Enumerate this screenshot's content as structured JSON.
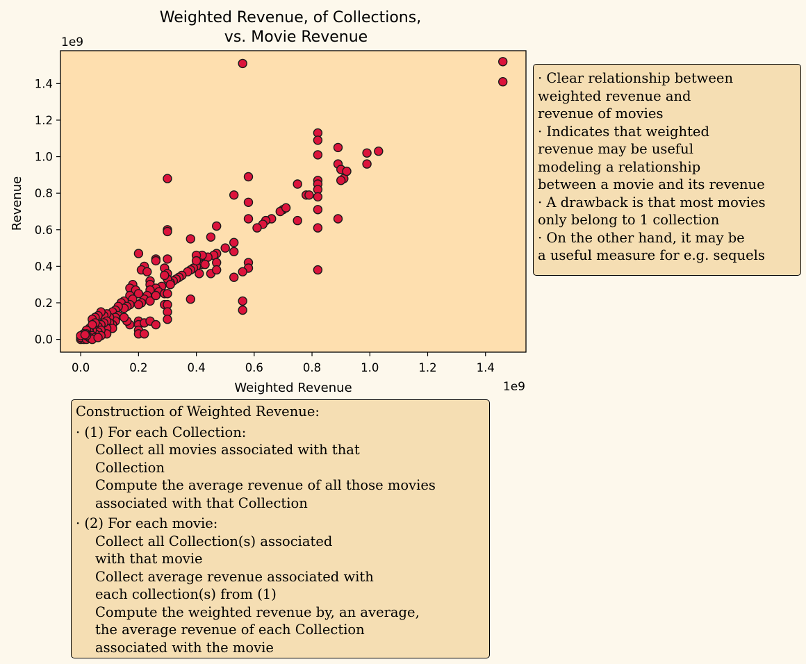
{
  "chart_data": {
    "type": "scatter",
    "title": "Weighted Revenue, of Collections,\nvs. Movie Revenue",
    "xlabel": "Weighted Revenue",
    "ylabel": "Revenue",
    "x_scale_label": "1e9",
    "y_scale_label": "1e9",
    "xlim": [
      -0.07,
      1.54
    ],
    "ylim": [
      -0.07,
      1.58
    ],
    "x_ticks": [
      "0.0",
      "0.2",
      "0.4",
      "0.6",
      "0.8",
      "1.0",
      "1.2",
      "1.4"
    ],
    "y_ticks": [
      "0.0",
      "0.2",
      "0.4",
      "0.6",
      "0.8",
      "1.0",
      "1.2",
      "1.4"
    ],
    "x_tick_values": [
      0.0,
      0.2,
      0.4,
      0.6,
      0.8,
      1.0,
      1.2,
      1.4
    ],
    "y_tick_values": [
      0.0,
      0.2,
      0.4,
      0.6,
      0.8,
      1.0,
      1.2,
      1.4
    ],
    "plot_background": "#fedfaf",
    "marker_color": "#dc143c",
    "marker_edge": "#1a1a1a",
    "grid": false,
    "points": [
      [
        1.46,
        1.52
      ],
      [
        1.46,
        1.41
      ],
      [
        0.56,
        1.51
      ],
      [
        0.82,
        1.13
      ],
      [
        0.82,
        1.09
      ],
      [
        0.82,
        1.01
      ],
      [
        0.89,
        1.05
      ],
      [
        0.89,
        0.96
      ],
      [
        0.9,
        0.93
      ],
      [
        0.91,
        0.88
      ],
      [
        0.92,
        0.92
      ],
      [
        0.9,
        0.87
      ],
      [
        0.99,
        1.02
      ],
      [
        1.03,
        1.03
      ],
      [
        0.99,
        0.96
      ],
      [
        0.3,
        0.88
      ],
      [
        0.58,
        0.89
      ],
      [
        0.53,
        0.79
      ],
      [
        0.58,
        0.75
      ],
      [
        0.75,
        0.85
      ],
      [
        0.78,
        0.79
      ],
      [
        0.79,
        0.79
      ],
      [
        0.82,
        0.87
      ],
      [
        0.82,
        0.85
      ],
      [
        0.82,
        0.82
      ],
      [
        0.82,
        0.78
      ],
      [
        0.82,
        0.71
      ],
      [
        0.82,
        0.61
      ],
      [
        0.89,
        0.66
      ],
      [
        0.82,
        0.38
      ],
      [
        0.7,
        0.71
      ],
      [
        0.69,
        0.7
      ],
      [
        0.71,
        0.72
      ],
      [
        0.75,
        0.65
      ],
      [
        0.66,
        0.66
      ],
      [
        0.64,
        0.65
      ],
      [
        0.63,
        0.63
      ],
      [
        0.61,
        0.61
      ],
      [
        0.58,
        0.66
      ],
      [
        0.47,
        0.62
      ],
      [
        0.3,
        0.6
      ],
      [
        0.3,
        0.59
      ],
      [
        0.38,
        0.55
      ],
      [
        0.45,
        0.56
      ],
      [
        0.5,
        0.5
      ],
      [
        0.53,
        0.53
      ],
      [
        0.53,
        0.48
      ],
      [
        0.58,
        0.42
      ],
      [
        0.58,
        0.39
      ],
      [
        0.56,
        0.37
      ],
      [
        0.53,
        0.34
      ],
      [
        0.56,
        0.21
      ],
      [
        0.56,
        0.16
      ],
      [
        0.47,
        0.47
      ],
      [
        0.46,
        0.46
      ],
      [
        0.44,
        0.45
      ],
      [
        0.42,
        0.46
      ],
      [
        0.4,
        0.46
      ],
      [
        0.41,
        0.42
      ],
      [
        0.42,
        0.41
      ],
      [
        0.43,
        0.41
      ],
      [
        0.4,
        0.4
      ],
      [
        0.39,
        0.39
      ],
      [
        0.38,
        0.38
      ],
      [
        0.37,
        0.37
      ],
      [
        0.35,
        0.35
      ],
      [
        0.34,
        0.34
      ],
      [
        0.33,
        0.33
      ],
      [
        0.32,
        0.32
      ],
      [
        0.31,
        0.31
      ],
      [
        0.45,
        0.36
      ],
      [
        0.41,
        0.36
      ],
      [
        0.47,
        0.42
      ],
      [
        0.47,
        0.38
      ],
      [
        0.4,
        0.43
      ],
      [
        0.2,
        0.47
      ],
      [
        0.26,
        0.44
      ],
      [
        0.26,
        0.43
      ],
      [
        0.3,
        0.44
      ],
      [
        0.22,
        0.4
      ],
      [
        0.21,
        0.38
      ],
      [
        0.23,
        0.37
      ],
      [
        0.29,
        0.39
      ],
      [
        0.3,
        0.36
      ],
      [
        0.24,
        0.32
      ],
      [
        0.24,
        0.3
      ],
      [
        0.3,
        0.33
      ],
      [
        0.29,
        0.35
      ],
      [
        0.31,
        0.3
      ],
      [
        0.28,
        0.29
      ],
      [
        0.26,
        0.28
      ],
      [
        0.27,
        0.26
      ],
      [
        0.29,
        0.25
      ],
      [
        0.3,
        0.25
      ],
      [
        0.24,
        0.27
      ],
      [
        0.23,
        0.24
      ],
      [
        0.22,
        0.22
      ],
      [
        0.24,
        0.21
      ],
      [
        0.21,
        0.2
      ],
      [
        0.2,
        0.19
      ],
      [
        0.26,
        0.24
      ],
      [
        0.29,
        0.19
      ],
      [
        0.3,
        0.19
      ],
      [
        0.3,
        0.15
      ],
      [
        0.3,
        0.11
      ],
      [
        0.38,
        0.22
      ],
      [
        0.18,
        0.3
      ],
      [
        0.17,
        0.28
      ],
      [
        0.19,
        0.27
      ],
      [
        0.2,
        0.25
      ],
      [
        0.17,
        0.24
      ],
      [
        0.18,
        0.22
      ],
      [
        0.17,
        0.19
      ],
      [
        0.15,
        0.21
      ],
      [
        0.14,
        0.2
      ],
      [
        0.16,
        0.18
      ],
      [
        0.15,
        0.17
      ],
      [
        0.13,
        0.18
      ],
      [
        0.12,
        0.16
      ],
      [
        0.11,
        0.15
      ],
      [
        0.13,
        0.13
      ],
      [
        0.12,
        0.12
      ],
      [
        0.2,
        0.1
      ],
      [
        0.2,
        0.08
      ],
      [
        0.2,
        0.05
      ],
      [
        0.2,
        0.03
      ],
      [
        0.22,
        0.03
      ],
      [
        0.22,
        0.09
      ],
      [
        0.24,
        0.1
      ],
      [
        0.26,
        0.08
      ],
      [
        0.17,
        0.08
      ],
      [
        0.16,
        0.1
      ],
      [
        0.15,
        0.12
      ],
      [
        0.12,
        0.1
      ],
      [
        0.11,
        0.08
      ],
      [
        0.1,
        0.12
      ],
      [
        0.1,
        0.09
      ],
      [
        0.11,
        0.06
      ],
      [
        0.09,
        0.14
      ],
      [
        0.08,
        0.13
      ],
      [
        0.07,
        0.15
      ],
      [
        0.06,
        0.13
      ],
      [
        0.05,
        0.12
      ],
      [
        0.04,
        0.11
      ],
      [
        0.09,
        0.1
      ],
      [
        0.09,
        0.06
      ],
      [
        0.09,
        0.03
      ],
      [
        0.08,
        0.09
      ],
      [
        0.07,
        0.08
      ],
      [
        0.06,
        0.07
      ],
      [
        0.07,
        0.05
      ],
      [
        0.05,
        0.09
      ],
      [
        0.06,
        0.04
      ],
      [
        0.07,
        0.02
      ],
      [
        0.05,
        0.03
      ],
      [
        0.04,
        0.05
      ],
      [
        0.03,
        0.06
      ],
      [
        0.04,
        0.08
      ],
      [
        0.03,
        0.04
      ],
      [
        0.02,
        0.05
      ],
      [
        0.02,
        0.03
      ],
      [
        0.03,
        0.02
      ],
      [
        0.04,
        0.02
      ],
      [
        0.01,
        0.02
      ],
      [
        0.01,
        0.01
      ],
      [
        0.02,
        0.01
      ],
      [
        0.0,
        0.0
      ],
      [
        0.01,
        0.0
      ],
      [
        0.0,
        0.01
      ],
      [
        0.02,
        0.0
      ],
      [
        0.03,
        0.01
      ],
      [
        0.05,
        0.01
      ],
      [
        0.04,
        0.0
      ],
      [
        0.06,
        0.01
      ],
      [
        0.01,
        0.03
      ],
      [
        0.0,
        0.02
      ],
      [
        0.02,
        0.02
      ],
      [
        0.015,
        0.025
      ]
    ]
  },
  "side_note": {
    "lines": [
      "· Clear relationship between",
      "weighted revenue and",
      "revenue of movies",
      "· Indicates that weighted",
      "revenue may be useful",
      "modeling a relationship",
      "between a movie and its revenue",
      "· A drawback is that most movies",
      "only belong to 1 collection",
      "· On the other hand, it may be",
      "a useful measure for e.g. sequels"
    ]
  },
  "construction_note": {
    "heading": "Construction of Weighted Revenue:",
    "step1_title": "· (1) For each Collection:",
    "step1_lines": [
      "Collect all movies associated with that",
      "Collection",
      "Compute the average revenue of all those movies",
      "associated with that Collection"
    ],
    "step2_title": "· (2) For each movie:",
    "step2_lines": [
      "Collect all Collection(s) associated",
      "with that movie",
      "Collect average revenue associated with",
      "each collection(s) from (1)",
      "Compute the weighted revenue by, an average,",
      "the average revenue of each Collection",
      "associated with the movie"
    ]
  }
}
